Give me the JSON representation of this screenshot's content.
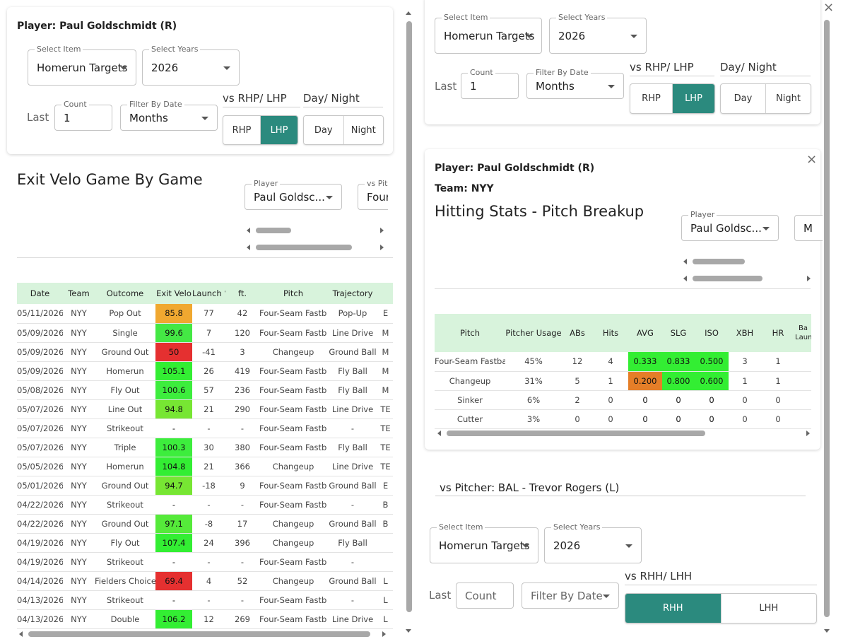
{
  "colors": {
    "accent": "#2b8a7e",
    "header_green": "#d8f3dc",
    "bright_green": "#33ee33",
    "mid_green": "#66e633",
    "orange": "#f0a830",
    "red": "#e53030",
    "dark_orange": "#e57e28"
  },
  "left_card": {
    "player_title": "Player: Paul Goldschmidt (R)",
    "select_item_label": "Select Item",
    "select_item_value": "Homerun Targets",
    "select_years_label": "Select Years",
    "select_years_value": "2026",
    "last_label": "Last",
    "count_label": "Count",
    "count_value": "1",
    "filter_label": "Filter By Date",
    "filter_value": "Months",
    "vs_label": "vs RHP/ LHP",
    "rhp": "RHP",
    "lhp": "LHP",
    "day_night_label": "Day/ Night",
    "day": "Day",
    "night": "Night"
  },
  "exit_velo": {
    "title": "Exit Velo Game By Game",
    "player_label": "Player",
    "player_value": "Paul Goldsc...",
    "vs_pitch_label": "vs Pitc",
    "vs_pitch_value": "Four",
    "columns": [
      "Date",
      "Team",
      "Outcome",
      "Exit Velo",
      "Launch °",
      "ft.",
      "Pitch",
      "Trajectory",
      ""
    ],
    "rows": [
      {
        "date": "05/11/2026",
        "team": "NYY",
        "outcome": "Pop Out",
        "ev": "85.8",
        "ev_color": "#f0a830",
        "launch": "77",
        "ft": "42",
        "pitch": "Four-Seam Fastball",
        "traj": "Pop-Up",
        "extra": "E"
      },
      {
        "date": "05/09/2026",
        "team": "NYY",
        "outcome": "Single",
        "ev": "99.6",
        "ev_color": "#44e844",
        "launch": "7",
        "ft": "120",
        "pitch": "Four-Seam Fastball",
        "traj": "Line Drive",
        "extra": "M"
      },
      {
        "date": "05/09/2026",
        "team": "NYY",
        "outcome": "Ground Out",
        "ev": "50",
        "ev_color": "#e53030",
        "launch": "-41",
        "ft": "3",
        "pitch": "Changeup",
        "traj": "Ground Ball",
        "extra": "M"
      },
      {
        "date": "05/09/2026",
        "team": "NYY",
        "outcome": "Homerun",
        "ev": "105.1",
        "ev_color": "#33ee33",
        "launch": "26",
        "ft": "419",
        "pitch": "Four-Seam Fastball",
        "traj": "Fly Ball",
        "extra": "M"
      },
      {
        "date": "05/08/2026",
        "team": "NYY",
        "outcome": "Fly Out",
        "ev": "100.6",
        "ev_color": "#3ded3d",
        "launch": "57",
        "ft": "236",
        "pitch": "Four-Seam Fastball",
        "traj": "Fly Ball",
        "extra": "M"
      },
      {
        "date": "05/07/2026",
        "team": "NYY",
        "outcome": "Line Out",
        "ev": "94.8",
        "ev_color": "#77e633",
        "launch": "21",
        "ft": "290",
        "pitch": "Four-Seam Fastball",
        "traj": "Line Drive",
        "extra": "TE"
      },
      {
        "date": "05/07/2026",
        "team": "NYY",
        "outcome": "Strikeout",
        "ev": "-",
        "ev_color": "",
        "launch": "-",
        "ft": "-",
        "pitch": "Four-Seam Fastball",
        "traj": "-",
        "extra": "TE"
      },
      {
        "date": "05/07/2026",
        "team": "NYY",
        "outcome": "Triple",
        "ev": "100.3",
        "ev_color": "#3ded3d",
        "launch": "30",
        "ft": "380",
        "pitch": "Four-Seam Fastball",
        "traj": "Fly Ball",
        "extra": "TE"
      },
      {
        "date": "05/05/2026",
        "team": "NYY",
        "outcome": "Homerun",
        "ev": "104.8",
        "ev_color": "#33ee33",
        "launch": "21",
        "ft": "366",
        "pitch": "Changeup",
        "traj": "Line Drive",
        "extra": "TE"
      },
      {
        "date": "05/01/2026",
        "team": "NYY",
        "outcome": "Ground Out",
        "ev": "94.7",
        "ev_color": "#77e633",
        "launch": "-18",
        "ft": "9",
        "pitch": "Four-Seam Fastball",
        "traj": "Ground Ball",
        "extra": "E"
      },
      {
        "date": "04/22/2026",
        "team": "NYY",
        "outcome": "Strikeout",
        "ev": "-",
        "ev_color": "",
        "launch": "-",
        "ft": "-",
        "pitch": "Four-Seam Fastball",
        "traj": "-",
        "extra": "B"
      },
      {
        "date": "04/22/2026",
        "team": "NYY",
        "outcome": "Ground Out",
        "ev": "97.1",
        "ev_color": "#55ea3a",
        "launch": "-8",
        "ft": "17",
        "pitch": "Changeup",
        "traj": "Ground Ball",
        "extra": "B"
      },
      {
        "date": "04/19/2026",
        "team": "NYY",
        "outcome": "Fly Out",
        "ev": "107.4",
        "ev_color": "#33ee33",
        "launch": "24",
        "ft": "396",
        "pitch": "Changeup",
        "traj": "Fly Ball",
        "extra": ""
      },
      {
        "date": "04/19/2026",
        "team": "NYY",
        "outcome": "Strikeout",
        "ev": "-",
        "ev_color": "",
        "launch": "-",
        "ft": "-",
        "pitch": "Four-Seam Fastball",
        "traj": "-",
        "extra": ""
      },
      {
        "date": "04/14/2026",
        "team": "NYY",
        "outcome": "Fielders Choice",
        "ev": "69.4",
        "ev_color": "#e53030",
        "launch": "4",
        "ft": "52",
        "pitch": "Changeup",
        "traj": "Ground Ball",
        "extra": "L"
      },
      {
        "date": "04/13/2026",
        "team": "NYY",
        "outcome": "Strikeout",
        "ev": "-",
        "ev_color": "",
        "launch": "-",
        "ft": "-",
        "pitch": "Four-Seam Fastball",
        "traj": "-",
        "extra": "L"
      },
      {
        "date": "04/13/2026",
        "team": "NYY",
        "outcome": "Double",
        "ev": "106.2",
        "ev_color": "#33ee33",
        "launch": "12",
        "ft": "269",
        "pitch": "Four-Seam Fastball",
        "traj": "Line Drive",
        "extra": "L"
      }
    ]
  },
  "right_top": {
    "select_item_label": "Select Item",
    "select_item_value": "Homerun Targets",
    "select_years_label": "Select Years",
    "select_years_value": "2026",
    "last_label": "Last",
    "count_label": "Count",
    "count_value": "1",
    "filter_label": "Filter By Date",
    "filter_value": "Months",
    "vs_label": "vs RHP/ LHP",
    "rhp": "RHP",
    "lhp": "LHP",
    "day_night_label": "Day/ Night",
    "day": "Day",
    "night": "Night"
  },
  "pitch_card": {
    "player_title": "Player: Paul Goldschmidt (R)",
    "team_title": "Team: NYY",
    "title": "Hitting Stats - Pitch Breakup",
    "player_label": "Player",
    "player_value": "Paul Goldsc...",
    "second_value": "M",
    "columns": [
      "Pitch",
      "Pitcher Usage",
      "ABs",
      "Hits",
      "AVG",
      "SLG",
      "ISO",
      "XBH",
      "HR",
      "Ba\nLaun"
    ],
    "rows": [
      {
        "pitch": "Four-Seam Fastball",
        "usage": "45%",
        "abs": "12",
        "hits": "4",
        "avg": "0.333",
        "avg_color": "#33ee33",
        "slg": "0.833",
        "slg_color": "#33ee33",
        "iso": "0.500",
        "iso_color": "#33ee33",
        "xbh": "3",
        "hr": "1",
        "last": ""
      },
      {
        "pitch": "Changeup",
        "usage": "31%",
        "abs": "5",
        "hits": "1",
        "avg": "0.200",
        "avg_color": "#e57e28",
        "slg": "0.800",
        "slg_color": "#33ee33",
        "iso": "0.600",
        "iso_color": "#33ee33",
        "xbh": "1",
        "hr": "1",
        "last": ""
      },
      {
        "pitch": "Sinker",
        "usage": "6%",
        "abs": "2",
        "hits": "0",
        "avg": "0",
        "avg_color": "",
        "slg": "0",
        "slg_color": "",
        "iso": "0",
        "iso_color": "",
        "xbh": "0",
        "hr": "0",
        "last": ""
      },
      {
        "pitch": "Cutter",
        "usage": "3%",
        "abs": "0",
        "hits": "0",
        "avg": "0",
        "avg_color": "",
        "slg": "0",
        "slg_color": "",
        "iso": "0",
        "iso_color": "",
        "xbh": "0",
        "hr": "0",
        "last": ""
      }
    ]
  },
  "vs_pitcher": {
    "title": "vs Pitcher: BAL - Trevor Rogers (L)",
    "select_item_label": "Select Item",
    "select_item_value": "Homerun Targets",
    "select_years_label": "Select Years",
    "select_years_value": "2026",
    "last_label": "Last",
    "count_placeholder": "Count",
    "filter_placeholder": "Filter By Date",
    "vs_label": "vs RHH/ LHH",
    "rhh": "RHH",
    "lhh": "LHH"
  },
  "close_glyph": "×"
}
